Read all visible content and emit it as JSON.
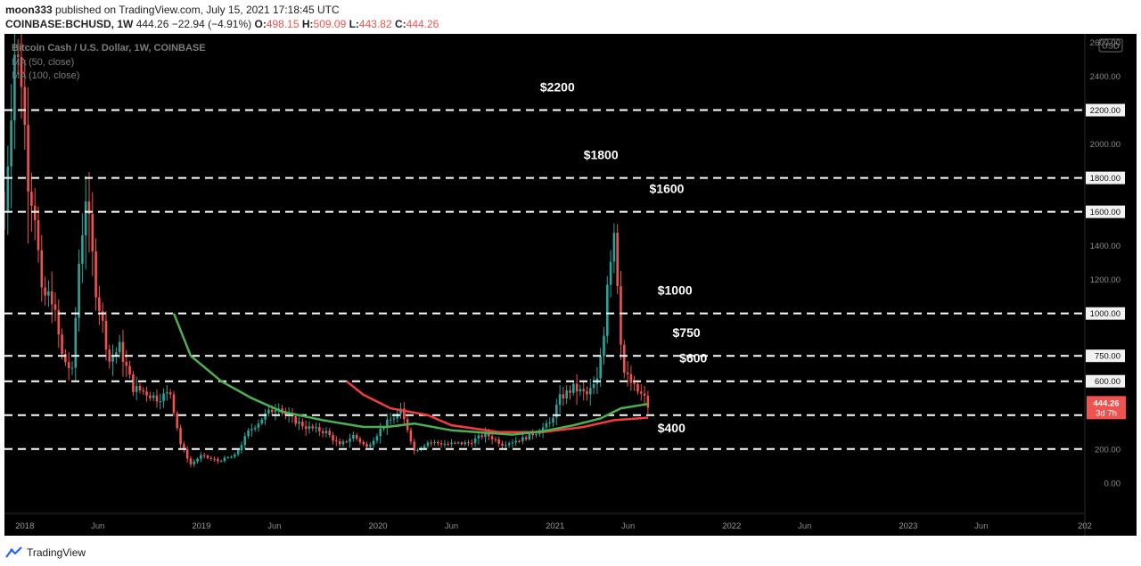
{
  "header": {
    "author": "moon333",
    "published": "published on TradingView.com, July 15, 2021 17:18:45 UTC",
    "symbol": "COINBASE:BCHUSD, 1W",
    "last": "444.26",
    "change": "−22.94 (−4.91%)",
    "o_label": "O:",
    "o_value": "498.15",
    "h_label": "H:",
    "h_value": "509.09",
    "l_label": "L:",
    "l_value": "443.82",
    "c_label": "C:",
    "c_value": "444.26"
  },
  "legend": {
    "main": "Bitcoin Cash / U.S. Dollar, 1W, COINBASE",
    "ma50": "MA (50, close)",
    "ma100": "MA (100, close)"
  },
  "price_tag": {
    "price": "444.26",
    "countdown": "3d 7h"
  },
  "currency": "USD",
  "footer": {
    "brand": "TradingView"
  },
  "colors": {
    "up": "#26a69a",
    "down": "#ef5350",
    "ma50": "#4caf50",
    "ma100": "#f23d3d",
    "background": "#000000"
  },
  "chart_data": {
    "type": "candlestick",
    "timeframe": "1W",
    "y_range": [
      -180,
      2650
    ],
    "x_range": [
      "2017-11-20",
      "2024-01-01"
    ],
    "y_ticks": [
      "2600.00",
      "2400.00",
      "2200.00",
      "2000.00",
      "1800.00",
      "1600.00",
      "1400.00",
      "1200.00",
      "1000.00",
      "750.00",
      "600.00",
      "400.00",
      "200.00",
      "0.00"
    ],
    "y_tick_values": [
      2600,
      2400,
      2200,
      2000,
      1800,
      1600,
      1400,
      1200,
      1000,
      750,
      600,
      400,
      200,
      0
    ],
    "x_ticks": [
      {
        "label": "2018",
        "date": "2018-01-01",
        "bold": true
      },
      {
        "label": "Jun",
        "date": "2018-06-01"
      },
      {
        "label": "2019",
        "date": "2019-01-01",
        "bold": true
      },
      {
        "label": "Jun",
        "date": "2019-06-01"
      },
      {
        "label": "2020",
        "date": "2020-01-01",
        "bold": true
      },
      {
        "label": "Jun",
        "date": "2020-06-01"
      },
      {
        "label": "2021",
        "date": "2021-01-01",
        "bold": true
      },
      {
        "label": "Jun",
        "date": "2021-06-01"
      },
      {
        "label": "2022",
        "date": "2022-01-01",
        "bold": true
      },
      {
        "label": "Jun",
        "date": "2022-06-01"
      },
      {
        "label": "2023",
        "date": "2023-01-01",
        "bold": true
      },
      {
        "label": "Jun",
        "date": "2023-06-01"
      },
      {
        "label": "202",
        "date": "2024-01-01",
        "bold": true
      }
    ],
    "levels": [
      {
        "value": 2200,
        "label": "$2200",
        "tick": "2200.00",
        "label_date": "2020-12-01"
      },
      {
        "value": 1800,
        "label": "$1800",
        "tick": "1800.00",
        "label_date": "2021-03-01"
      },
      {
        "value": 1600,
        "label": "$1600",
        "tick": "1600.00",
        "label_date": "2021-07-15"
      },
      {
        "value": 1000,
        "label": "$1000",
        "tick": "1000.00",
        "label_date": "2021-08-01"
      },
      {
        "value": 750,
        "label": "$750",
        "tick": "750.00",
        "label_date": "2021-09-01"
      },
      {
        "value": 600,
        "label": "$600",
        "tick": "600.00",
        "label_date": "2021-09-15"
      },
      {
        "value": 400,
        "label": "$400",
        "tick": null,
        "label_date": "2021-08-01",
        "label_value": 320
      },
      {
        "value": 200,
        "label": "",
        "tick": null
      }
    ],
    "price_anchors": [
      [
        "2017-11-20",
        1600
      ],
      [
        "2017-12-11",
        2550
      ],
      [
        "2017-12-25",
        2400
      ],
      [
        "2018-01-08",
        1800
      ],
      [
        "2018-01-22",
        1600
      ],
      [
        "2018-02-05",
        1100
      ],
      [
        "2018-02-26",
        1100
      ],
      [
        "2018-03-19",
        750
      ],
      [
        "2018-04-09",
        650
      ],
      [
        "2018-04-23",
        1300
      ],
      [
        "2018-05-07",
        1700
      ],
      [
        "2018-05-28",
        1150
      ],
      [
        "2018-06-25",
        720
      ],
      [
        "2018-07-16",
        800
      ],
      [
        "2018-08-13",
        560
      ],
      [
        "2018-09-03",
        540
      ],
      [
        "2018-10-01",
        500
      ],
      [
        "2018-10-29",
        530
      ],
      [
        "2018-11-19",
        230
      ],
      [
        "2018-12-10",
        110
      ],
      [
        "2018-12-31",
        160
      ],
      [
        "2019-02-04",
        130
      ],
      [
        "2019-03-11",
        160
      ],
      [
        "2019-04-08",
        300
      ],
      [
        "2019-05-13",
        400
      ],
      [
        "2019-06-10",
        460
      ],
      [
        "2019-06-24",
        400
      ],
      [
        "2019-08-05",
        330
      ],
      [
        "2019-09-16",
        300
      ],
      [
        "2019-10-14",
        220
      ],
      [
        "2019-11-11",
        280
      ],
      [
        "2019-12-09",
        210
      ],
      [
        "2020-01-13",
        340
      ],
      [
        "2020-02-17",
        420
      ],
      [
        "2020-03-02",
        320
      ],
      [
        "2020-03-16",
        190
      ],
      [
        "2020-04-13",
        240
      ],
      [
        "2020-05-25",
        230
      ],
      [
        "2020-07-06",
        235
      ],
      [
        "2020-08-10",
        290
      ],
      [
        "2020-09-14",
        230
      ],
      [
        "2020-10-26",
        260
      ],
      [
        "2020-11-23",
        300
      ],
      [
        "2020-12-21",
        350
      ],
      [
        "2021-01-11",
        500
      ],
      [
        "2021-02-08",
        560
      ],
      [
        "2021-03-08",
        520
      ],
      [
        "2021-03-29",
        600
      ],
      [
        "2021-04-12",
        900
      ],
      [
        "2021-04-19",
        1200
      ],
      [
        "2021-05-03",
        1500
      ],
      [
        "2021-05-10",
        1200
      ],
      [
        "2021-05-17",
        850
      ],
      [
        "2021-05-24",
        650
      ],
      [
        "2021-06-14",
        560
      ],
      [
        "2021-07-05",
        500
      ],
      [
        "2021-07-12",
        444.26
      ]
    ],
    "ma50": [
      [
        "2018-11-05",
        1000
      ],
      [
        "2018-12-10",
        750
      ],
      [
        "2019-02-11",
        600
      ],
      [
        "2019-04-15",
        500
      ],
      [
        "2019-06-17",
        420
      ],
      [
        "2019-09-09",
        370
      ],
      [
        "2019-12-02",
        330
      ],
      [
        "2020-01-20",
        330
      ],
      [
        "2020-03-16",
        350
      ],
      [
        "2020-06-01",
        310
      ],
      [
        "2020-10-05",
        285
      ],
      [
        "2020-12-07",
        305
      ],
      [
        "2021-02-08",
        340
      ],
      [
        "2021-04-05",
        380
      ],
      [
        "2021-05-17",
        440
      ],
      [
        "2021-07-12",
        466
      ]
    ],
    "ma100": [
      [
        "2019-10-28",
        600
      ],
      [
        "2019-12-02",
        520
      ],
      [
        "2020-01-27",
        440
      ],
      [
        "2020-04-13",
        400
      ],
      [
        "2020-06-01",
        340
      ],
      [
        "2020-09-07",
        300
      ],
      [
        "2020-12-07",
        300
      ],
      [
        "2021-03-01",
        330
      ],
      [
        "2021-05-03",
        370
      ],
      [
        "2021-07-12",
        385
      ]
    ],
    "last_price": 444.26
  }
}
